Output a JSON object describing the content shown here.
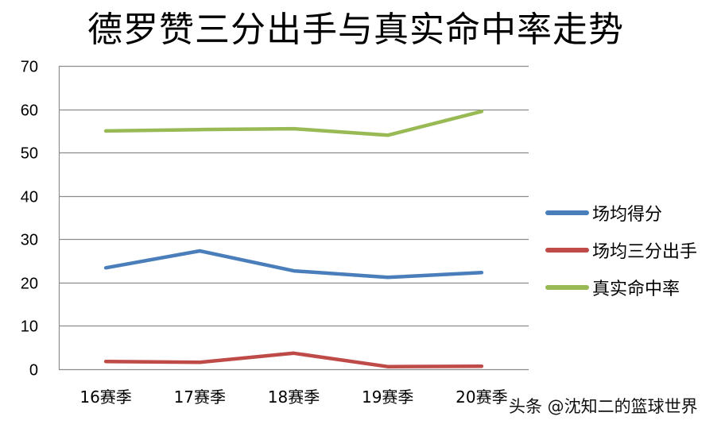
{
  "chart_data": {
    "type": "line",
    "title": "德罗赞三分出手与真实命中率走势",
    "xlabel": "",
    "ylabel": "",
    "categories": [
      "16赛季",
      "17赛季",
      "18赛季",
      "19赛季",
      "20赛季"
    ],
    "series": [
      {
        "name": "场均得分",
        "color": "#4A7EBB",
        "values": [
          23.4,
          27.3,
          22.7,
          21.2,
          22.3
        ]
      },
      {
        "name": "场均三分出手",
        "color": "#BE4B48",
        "values": [
          1.8,
          1.6,
          3.7,
          0.6,
          0.7
        ]
      },
      {
        "name": "真实命中率",
        "color": "#98B954",
        "values": [
          55.0,
          55.3,
          55.5,
          54.0,
          59.5
        ]
      }
    ],
    "ylim": [
      0,
      70
    ],
    "yticks": [
      0,
      10,
      20,
      30,
      40,
      50,
      60,
      70
    ],
    "grid": true,
    "legend_position": "right"
  },
  "watermark": "头条 @沈知二的篮球世界"
}
